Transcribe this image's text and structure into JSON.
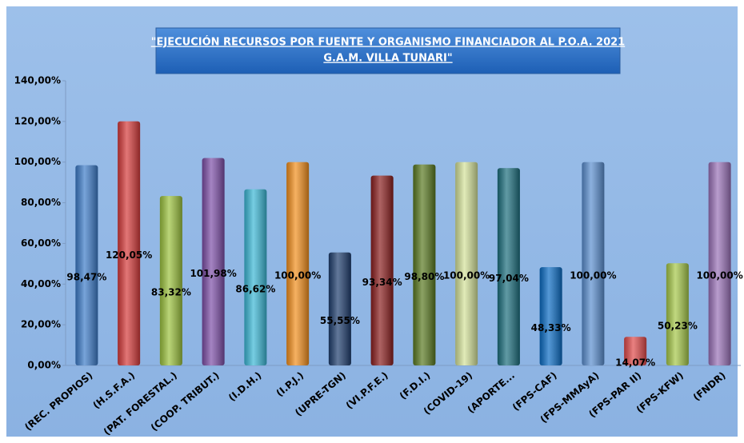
{
  "chart_data": {
    "type": "bar",
    "title": [
      "\"EJECUCIÓN RECURSOS POR FUENTE Y ORGANISMO FINANCIADOR  AL P.O.A. 2021",
      "G.A.M. VILLA TUNARI\""
    ],
    "categories": [
      "(REC. PROPIOS)",
      "(H.S.F.A.)",
      "(PAT. FORESTAL.)",
      "(COOP. TRIBUT.)",
      "(I.D.H.)",
      "(I.P.J.)",
      "(UPRE-TGN)",
      "(VI.P.F.E.)",
      "(F.D.I.)",
      "(COVID-19)",
      "(APORTE...",
      "(FPS-CAF)",
      "(FPS-MMAyA)",
      "(FPS-PAR II)",
      "(FPS-KFW)",
      "(FNDR)"
    ],
    "values": [
      98.47,
      120.05,
      83.32,
      101.98,
      86.62,
      100,
      55.55,
      93.34,
      98.8,
      100,
      97.04,
      48.33,
      100,
      14.07,
      50.23,
      100
    ],
    "value_labels": [
      "98,47%",
      "120,05%",
      "83,32%",
      "101,98%",
      "86,62%",
      "100,00%",
      "55,55%",
      "93,34%",
      "98,80%",
      "100,00%",
      "97,04%",
      "48,33%",
      "100,00%",
      "14,07%",
      "50,23%",
      "100,00%"
    ],
    "colors": [
      "#3d7cc9",
      "#d63b3b",
      "#9cc23e",
      "#7e4fa8",
      "#3cb8d6",
      "#f28f1e",
      "#1f3e6e",
      "#8b1f1f",
      "#5a7a22",
      "#d4e29a",
      "#1d6f7e",
      "#0b6cc4",
      "#5b8fd0",
      "#e04a4a",
      "#a6c84a",
      "#9a72b8"
    ],
    "ylim": [
      0,
      140
    ],
    "yticks": [
      {
        "value": 0,
        "label": "0,00%"
      },
      {
        "value": 20,
        "label": "20,00%"
      },
      {
        "value": 40,
        "label": "40,00%"
      },
      {
        "value": 60,
        "label": "60,00%"
      },
      {
        "value": 80,
        "label": "80,00%"
      },
      {
        "value": 100,
        "label": "100,00%"
      },
      {
        "value": 120,
        "label": "120,00%"
      },
      {
        "value": 140,
        "label": "140,00%"
      }
    ],
    "grid": false
  }
}
